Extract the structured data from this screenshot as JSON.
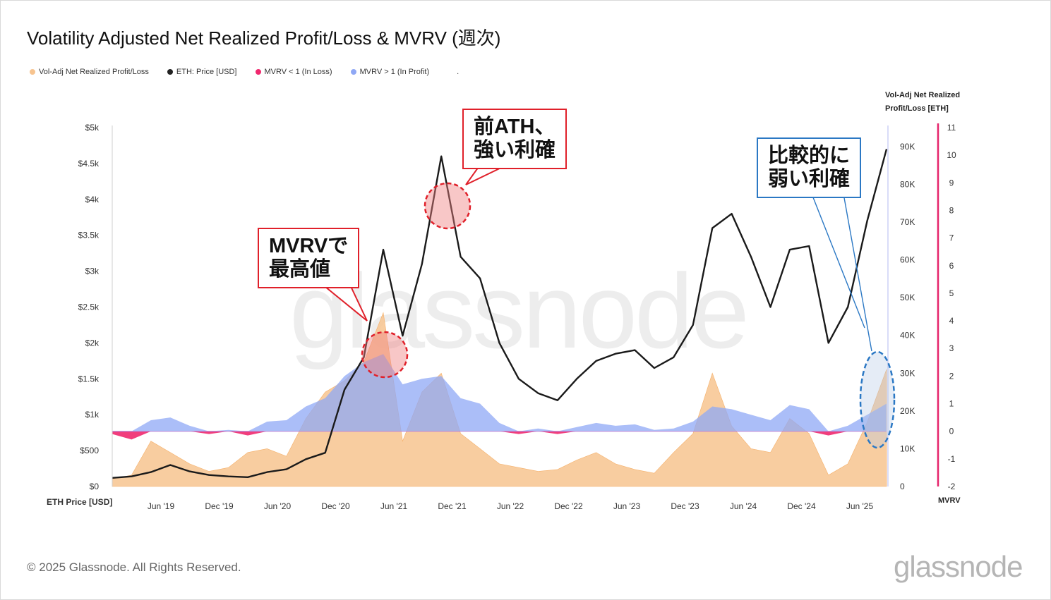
{
  "title": "Volatility Adjusted Net Realized Profit/Loss & MVRV (週次)",
  "legend": [
    {
      "label": "Vol-Adj Net Realized Profit/Loss",
      "color": "#f7c48f"
    },
    {
      "label": "ETH: Price [USD]",
      "color": "#222222"
    },
    {
      "label": "MVRV < 1 (In Loss)",
      "color": "#f0286e"
    },
    {
      "label": "MVRV > 1 (In Profit)",
      "color": "#8fa8f5"
    },
    {
      "label": ".",
      "color": "transparent"
    }
  ],
  "axes": {
    "left_title": "ETH Price [USD]",
    "right1_title": "Vol-Adj Net Realized Profit/Loss [ETH]",
    "right2_title": "MVRV",
    "x_ticks": [
      "Jun '19",
      "Dec '19",
      "Jun '20",
      "Dec '20",
      "Jun '21",
      "Dec '21",
      "Jun '22",
      "Dec '22",
      "Jun '23",
      "Dec '23",
      "Jun '24",
      "Dec '24",
      "Jun '25"
    ],
    "left_ticks": [
      "$0",
      "$500",
      "$1k",
      "$1.5k",
      "$2k",
      "$2.5k",
      "$3k",
      "$3.5k",
      "$4k",
      "$4.5k",
      "$5k"
    ],
    "right1_ticks": [
      "0",
      "10K",
      "20K",
      "30K",
      "40K",
      "50K",
      "60K",
      "70K",
      "80K",
      "90K"
    ],
    "right2_ticks": [
      "-2",
      "-1",
      "0",
      "1",
      "2",
      "3",
      "4",
      "5",
      "6",
      "7",
      "8",
      "9",
      "10",
      "11"
    ]
  },
  "annotations": {
    "mvrv_peak": "MVRVで\n最高値",
    "prev_ath": "前ATH、\n強い利確",
    "recent": "比較的に\n弱い利確"
  },
  "footer": "© 2025 Glassnode. All Rights Reserved.",
  "brand": "glassnode",
  "watermark": "glassnode",
  "colors": {
    "price": "#1a1a1a",
    "profit": "#f7c48f",
    "mvrv_up": "#8fa8f5",
    "mvrv_down": "#f0286e"
  },
  "chart_data": {
    "type": "line",
    "title": "Volatility Adjusted Net Realized Profit/Loss & MVRV (週次)",
    "x": [
      "2019-01",
      "2019-03",
      "2019-05",
      "2019-07",
      "2019-09",
      "2019-11",
      "2020-01",
      "2020-03",
      "2020-05",
      "2020-07",
      "2020-09",
      "2020-11",
      "2021-01",
      "2021-03",
      "2021-05",
      "2021-07",
      "2021-09",
      "2021-11",
      "2022-01",
      "2022-03",
      "2022-05",
      "2022-07",
      "2022-09",
      "2022-11",
      "2023-01",
      "2023-03",
      "2023-05",
      "2023-07",
      "2023-09",
      "2023-11",
      "2024-01",
      "2024-03",
      "2024-05",
      "2024-07",
      "2024-09",
      "2024-11",
      "2025-01",
      "2025-03",
      "2025-05",
      "2025-07",
      "2025-08"
    ],
    "series": [
      {
        "name": "ETH: Price [USD]",
        "axis": "left",
        "values": [
          120,
          140,
          200,
          300,
          210,
          160,
          140,
          130,
          200,
          240,
          380,
          470,
          1350,
          1800,
          3300,
          2100,
          3100,
          4600,
          3200,
          2900,
          2000,
          1500,
          1300,
          1200,
          1500,
          1750,
          1850,
          1900,
          1650,
          1800,
          2250,
          3600,
          3800,
          3200,
          2500,
          3300,
          3350,
          2000,
          2500,
          3700,
          4700
        ]
      },
      {
        "name": "Vol-Adj Net Realized Profit/Loss",
        "axis": "right1",
        "values": [
          2000,
          3000,
          12000,
          9000,
          6000,
          4000,
          5000,
          9000,
          10000,
          8000,
          18000,
          25000,
          28000,
          33000,
          46000,
          12000,
          25000,
          30000,
          14000,
          10000,
          6000,
          5000,
          4000,
          4500,
          7000,
          9000,
          6000,
          4500,
          3500,
          9000,
          14000,
          30000,
          16000,
          10000,
          9000,
          18000,
          14000,
          3000,
          6000,
          17000,
          31000
        ]
      },
      {
        "name": "MVRV",
        "axis": "right2",
        "values": [
          -0.1,
          -0.3,
          0.4,
          0.5,
          0.2,
          -0.1,
          0.05,
          -0.15,
          0.35,
          0.4,
          0.9,
          1.2,
          2.0,
          2.5,
          2.8,
          1.7,
          1.9,
          2.0,
          1.2,
          1.0,
          0.3,
          -0.1,
          0.1,
          -0.1,
          0.15,
          0.3,
          0.2,
          0.25,
          0.05,
          0.1,
          0.35,
          0.9,
          0.8,
          0.6,
          0.4,
          0.95,
          0.8,
          -0.15,
          0.2,
          0.6,
          1.0
        ]
      }
    ],
    "ylim_left": [
      0,
      5000
    ],
    "ylim_right1": [
      0,
      95000
    ],
    "ylim_right2": [
      -2,
      11
    ],
    "grid": false,
    "legend_position": "top-left"
  }
}
